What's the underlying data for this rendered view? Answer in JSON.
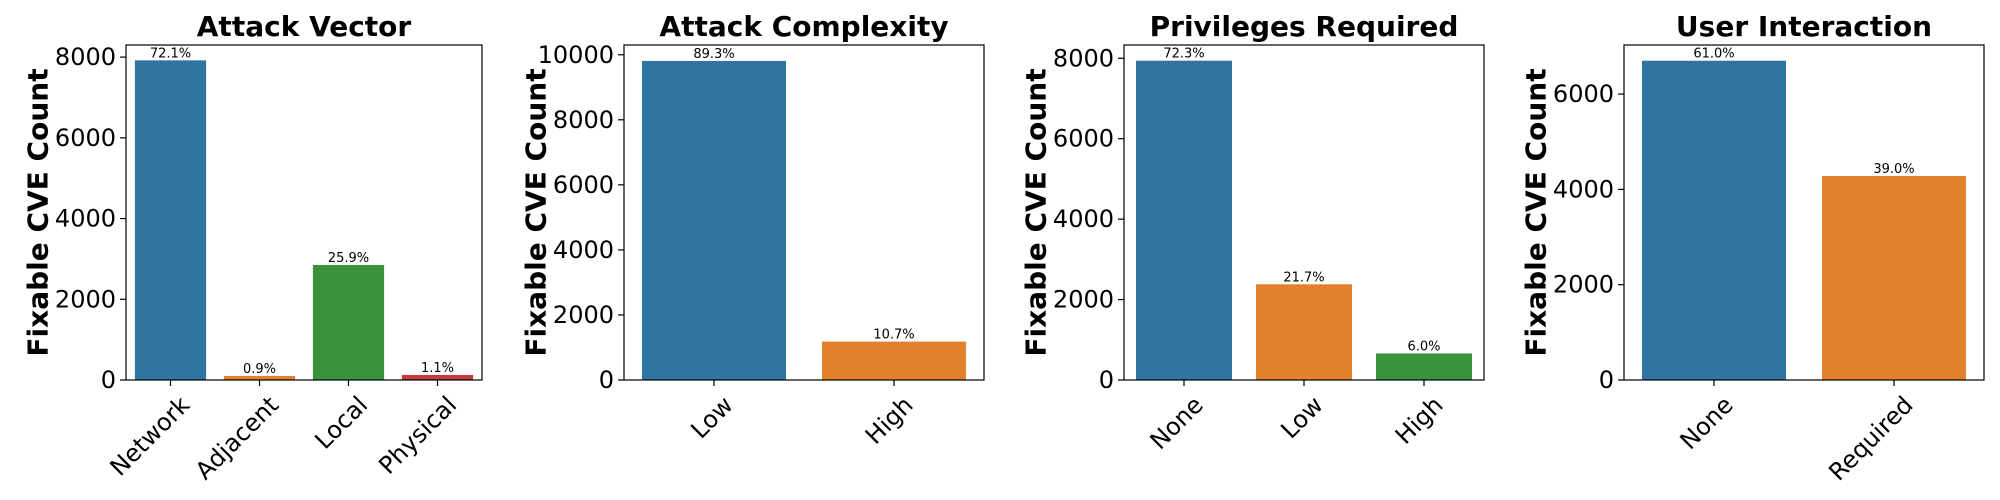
{
  "chart_data": [
    {
      "type": "bar",
      "title": "Attack Vector",
      "ylabel": "Fixable CVE Count",
      "xlabel": "",
      "categories": [
        "Network",
        "Adjacent",
        "Local",
        "Physical"
      ],
      "values": [
        7920,
        100,
        2850,
        125
      ],
      "labels": [
        "72.1%",
        "0.9%",
        "25.9%",
        "1.1%"
      ],
      "colors": [
        "#3274a1",
        "#e1812c",
        "#3a923a",
        "#c03d3e"
      ],
      "ylim": [
        0,
        8300
      ],
      "yticks": [
        0,
        2000,
        4000,
        6000,
        8000
      ],
      "ytick_labels": [
        "0",
        "2000",
        "4000",
        "6000",
        "8000"
      ],
      "grid": false,
      "legend": "none"
    },
    {
      "type": "bar",
      "title": "Attack Complexity",
      "ylabel": "Fixable CVE Count",
      "xlabel": "",
      "categories": [
        "Low",
        "High"
      ],
      "values": [
        9810,
        1180
      ],
      "labels": [
        "89.3%",
        "10.7%"
      ],
      "colors": [
        "#3274a1",
        "#e1812c"
      ],
      "ylim": [
        0,
        10300
      ],
      "yticks": [
        0,
        2000,
        4000,
        6000,
        8000,
        10000
      ],
      "ytick_labels": [
        "0",
        "2000",
        "4000",
        "6000",
        "8000",
        "10000"
      ],
      "grid": false,
      "legend": "none"
    },
    {
      "type": "bar",
      "title": "Privileges Required",
      "ylabel": "Fixable CVE Count",
      "xlabel": "",
      "categories": [
        "None",
        "Low",
        "High"
      ],
      "values": [
        7940,
        2380,
        660
      ],
      "labels": [
        "72.3%",
        "21.7%",
        "6.0%"
      ],
      "colors": [
        "#3274a1",
        "#e1812c",
        "#3a923a"
      ],
      "ylim": [
        0,
        8330
      ],
      "yticks": [
        0,
        2000,
        4000,
        6000,
        8000
      ],
      "ytick_labels": [
        "0",
        "2000",
        "4000",
        "6000",
        "8000"
      ],
      "grid": false,
      "legend": "none"
    },
    {
      "type": "bar",
      "title": "User Interaction",
      "ylabel": "Fixable CVE Count",
      "xlabel": "",
      "categories": [
        "None",
        "Required"
      ],
      "values": [
        6700,
        4280
      ],
      "labels": [
        "61.0%",
        "39.0%"
      ],
      "colors": [
        "#3274a1",
        "#e1812c"
      ],
      "ylim": [
        0,
        7030
      ],
      "yticks": [
        0,
        2000,
        4000,
        6000
      ],
      "ytick_labels": [
        "0",
        "2000",
        "4000",
        "6000"
      ],
      "grid": false,
      "legend": "none"
    }
  ]
}
